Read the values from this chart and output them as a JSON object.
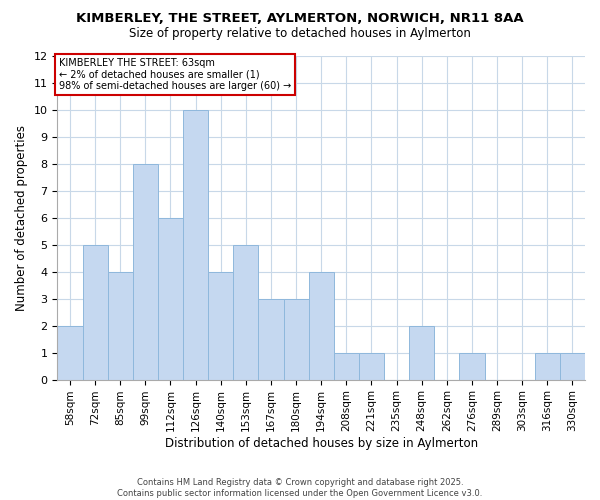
{
  "title": "KIMBERLEY, THE STREET, AYLMERTON, NORWICH, NR11 8AA",
  "subtitle": "Size of property relative to detached houses in Aylmerton",
  "xlabel": "Distribution of detached houses by size in Aylmerton",
  "ylabel": "Number of detached properties",
  "bin_labels": [
    "58sqm",
    "72sqm",
    "85sqm",
    "99sqm",
    "112sqm",
    "126sqm",
    "140sqm",
    "153sqm",
    "167sqm",
    "180sqm",
    "194sqm",
    "208sqm",
    "221sqm",
    "235sqm",
    "248sqm",
    "262sqm",
    "276sqm",
    "289sqm",
    "303sqm",
    "316sqm",
    "330sqm"
  ],
  "bar_values": [
    2,
    5,
    4,
    8,
    6,
    10,
    4,
    5,
    3,
    3,
    4,
    1,
    1,
    0,
    2,
    0,
    1,
    0,
    0,
    1,
    1
  ],
  "bar_color": "#c5d8f0",
  "bar_edge_color": "#8fb8dc",
  "annotation_title": "KIMBERLEY THE STREET: 63sqm",
  "annotation_line1": "← 2% of detached houses are smaller (1)",
  "annotation_line2": "98% of semi-detached houses are larger (60) →",
  "annotation_box_color": "#ffffff",
  "annotation_box_edge": "#cc0000",
  "ylim": [
    0,
    12
  ],
  "yticks": [
    0,
    1,
    2,
    3,
    4,
    5,
    6,
    7,
    8,
    9,
    10,
    11,
    12
  ],
  "footer_line1": "Contains HM Land Registry data © Crown copyright and database right 2025.",
  "footer_line2": "Contains public sector information licensed under the Open Government Licence v3.0.",
  "background_color": "#ffffff",
  "grid_color": "#c8d8e8"
}
